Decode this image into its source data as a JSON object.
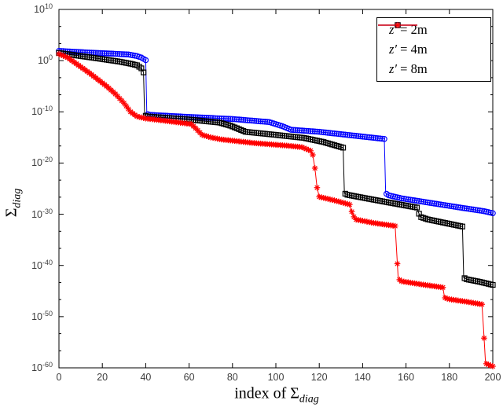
{
  "figure": {
    "background": "#ffffff"
  },
  "chart_data": {
    "type": "line",
    "title": "",
    "xlabel": {
      "prefix": "index of Σ",
      "sub": "diag"
    },
    "ylabel": {
      "prefix": "Σ",
      "sub": "diag"
    },
    "xlim": [
      0,
      200
    ],
    "ylim_log10": [
      -60,
      10
    ],
    "x_ticks": [
      0,
      20,
      40,
      60,
      80,
      100,
      120,
      140,
      160,
      180,
      200
    ],
    "y_tick_exponents": [
      10,
      0,
      -10,
      -20,
      -30,
      -40,
      -50,
      -60
    ],
    "grid": false,
    "axis_color": "#000000",
    "tick_label_color": "#3d3d3d",
    "legend": {
      "position": "top-right",
      "entries": [
        {
          "symbol": "z′",
          "text": "= 2m"
        },
        {
          "symbol": "z′",
          "text": "= 4m"
        },
        {
          "symbol": "z′",
          "text": "= 8m"
        }
      ]
    },
    "series": [
      {
        "name": "z′ = 2m",
        "color": "#0000ff",
        "marker": "circle",
        "points_log10": [
          [
            0,
            1.9
          ],
          [
            8,
            1.7
          ],
          [
            15,
            1.55
          ],
          [
            25,
            1.35
          ],
          [
            32,
            1.2
          ],
          [
            36,
            0.9
          ],
          [
            38,
            0.6
          ],
          [
            40,
            0.1
          ],
          [
            40.5,
            -10.4
          ],
          [
            42,
            -10.6
          ],
          [
            60,
            -11.0
          ],
          [
            80,
            -11.4
          ],
          [
            97,
            -12.0
          ],
          [
            103,
            -12.8
          ],
          [
            107,
            -13.5
          ],
          [
            120,
            -13.9
          ],
          [
            135,
            -14.6
          ],
          [
            150,
            -15.3
          ],
          [
            150.6,
            -25.9
          ],
          [
            152,
            -26.3
          ],
          [
            158,
            -26.9
          ],
          [
            170,
            -27.7
          ],
          [
            185,
            -28.7
          ],
          [
            196,
            -29.4
          ],
          [
            200,
            -29.8
          ]
        ]
      },
      {
        "name": "z′ = 4m",
        "color": "#000000",
        "marker": "square",
        "points_log10": [
          [
            0,
            1.5
          ],
          [
            10,
            0.9
          ],
          [
            20,
            0.3
          ],
          [
            28,
            -0.2
          ],
          [
            33,
            -0.6
          ],
          [
            36,
            -0.9
          ],
          [
            38,
            -1.5
          ],
          [
            39,
            -2.3
          ],
          [
            39.5,
            -10.7
          ],
          [
            41,
            -10.9
          ],
          [
            60,
            -11.5
          ],
          [
            74,
            -12.1
          ],
          [
            79,
            -12.7
          ],
          [
            82,
            -13.2
          ],
          [
            86,
            -13.9
          ],
          [
            100,
            -14.5
          ],
          [
            113,
            -15.1
          ],
          [
            122,
            -15.9
          ],
          [
            131,
            -17.0
          ],
          [
            131.6,
            -25.9
          ],
          [
            133,
            -26.2
          ],
          [
            143,
            -27.0
          ],
          [
            152,
            -27.7
          ],
          [
            165,
            -28.7
          ],
          [
            166.5,
            -30.5
          ],
          [
            170,
            -31.0
          ],
          [
            178,
            -31.7
          ],
          [
            186,
            -32.4
          ],
          [
            186.6,
            -42.4
          ],
          [
            188,
            -42.7
          ],
          [
            194,
            -43.2
          ],
          [
            200,
            -43.8
          ]
        ]
      },
      {
        "name": "z′ = 8m",
        "color": "#ff0000",
        "marker": "asterisk",
        "points_log10": [
          [
            0,
            1.3
          ],
          [
            4,
            0.6
          ],
          [
            7,
            -0.3
          ],
          [
            10,
            -1.2
          ],
          [
            14,
            -2.4
          ],
          [
            18,
            -3.7
          ],
          [
            22,
            -5.0
          ],
          [
            26,
            -6.5
          ],
          [
            30,
            -8.3
          ],
          [
            33,
            -10.0
          ],
          [
            36,
            -10.9
          ],
          [
            40,
            -11.3
          ],
          [
            50,
            -11.8
          ],
          [
            61,
            -12.4
          ],
          [
            63,
            -13.2
          ],
          [
            66,
            -14.5
          ],
          [
            70,
            -15.0
          ],
          [
            75,
            -15.4
          ],
          [
            90,
            -16.1
          ],
          [
            105,
            -16.6
          ],
          [
            112,
            -16.9
          ],
          [
            116,
            -17.6
          ],
          [
            117,
            -18.4
          ],
          [
            118,
            -21.0
          ],
          [
            119,
            -24.8
          ],
          [
            120,
            -26.6
          ],
          [
            127,
            -27.3
          ],
          [
            134,
            -28.1
          ],
          [
            134.8,
            -29.3
          ],
          [
            136.5,
            -31.0
          ],
          [
            145,
            -31.7
          ],
          [
            155,
            -32.3
          ],
          [
            155.5,
            -36.0
          ],
          [
            156.4,
            -42.6
          ],
          [
            158,
            -43.1
          ],
          [
            167,
            -43.7
          ],
          [
            177,
            -44.3
          ],
          [
            177.8,
            -46.3
          ],
          [
            180,
            -46.6
          ],
          [
            188,
            -47.1
          ],
          [
            195,
            -47.6
          ],
          [
            195.7,
            -52.0
          ],
          [
            196.6,
            -58.6
          ],
          [
            197,
            -59.2
          ],
          [
            200,
            -59.7
          ]
        ]
      }
    ]
  }
}
